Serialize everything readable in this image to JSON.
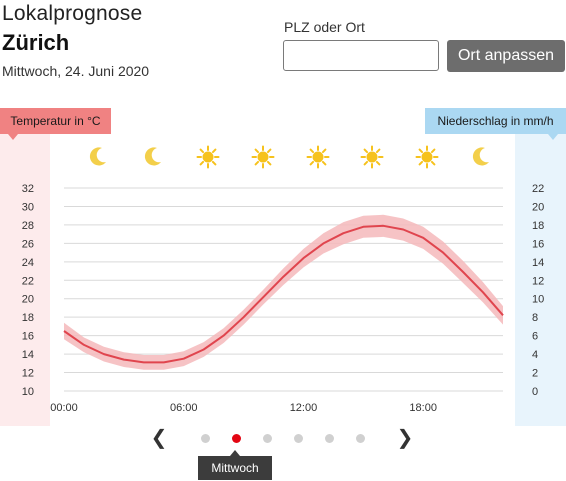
{
  "header": {
    "title": "Lokalprognose",
    "city": "Zürich",
    "date": "Mittwoch, 24. Juni 2020"
  },
  "location": {
    "label": "PLZ oder Ort",
    "value": "",
    "button_label": "Ort anpassen"
  },
  "legend": {
    "temperature_label": "Temperatur in °C",
    "precipitation_label": "Niederschlag in mm/h"
  },
  "weather_icons": [
    "moon-icon",
    "moon-icon",
    "sun-icon",
    "sun-icon",
    "sun-icon",
    "sun-icon",
    "sun-icon",
    "moon-icon"
  ],
  "colors": {
    "temp_line": "#e0454e",
    "temp_band": "#f4b9bb",
    "temp_label_bg": "#f08282",
    "rain_label_bg": "#abd8f2",
    "sun": "#f6c21c",
    "moon": "#f3cf4a",
    "active_dot": "#e30613"
  },
  "chart_data": {
    "type": "line",
    "x_unit": "hour",
    "x_ticks": [
      "00:00",
      "06:00",
      "12:00",
      "18:00"
    ],
    "xlim": [
      0,
      22
    ],
    "y_left_ticks": [
      10,
      12,
      14,
      16,
      18,
      20,
      22,
      24,
      26,
      28,
      30,
      32
    ],
    "y_left_range": [
      10,
      32
    ],
    "y_right_ticks": [
      0,
      2,
      4,
      6,
      8,
      10,
      12,
      14,
      16,
      18,
      20,
      22
    ],
    "y_right_range": [
      0,
      22
    ],
    "grid": true,
    "series": [
      {
        "x": [
          0,
          1,
          2,
          3,
          4,
          5,
          6,
          7,
          8,
          9,
          10,
          11,
          12,
          13,
          14,
          15,
          16,
          17,
          18,
          19,
          20,
          21,
          22
        ],
        "values": [
          16.5,
          15.0,
          14.0,
          13.4,
          13.1,
          13.1,
          13.5,
          14.5,
          16.0,
          18.0,
          20.2,
          22.4,
          24.4,
          26.0,
          27.1,
          27.8,
          27.9,
          27.5,
          26.6,
          25.0,
          22.9,
          20.7,
          18.2
        ],
        "lower": [
          15.6,
          14.2,
          13.2,
          12.6,
          12.3,
          12.3,
          12.7,
          13.7,
          15.2,
          17.2,
          19.4,
          21.5,
          23.4,
          24.9,
          25.9,
          26.6,
          26.7,
          26.3,
          25.4,
          23.8,
          21.7,
          19.6,
          17.2
        ],
        "upper": [
          17.4,
          15.8,
          14.8,
          14.2,
          13.9,
          13.9,
          14.3,
          15.3,
          16.8,
          18.8,
          21.0,
          23.3,
          25.4,
          27.1,
          28.3,
          29.0,
          29.1,
          28.7,
          27.8,
          26.2,
          24.1,
          21.8,
          19.2
        ]
      }
    ]
  },
  "pager": {
    "pages": 6,
    "active_index": 1,
    "active_label": "Mittwoch"
  }
}
